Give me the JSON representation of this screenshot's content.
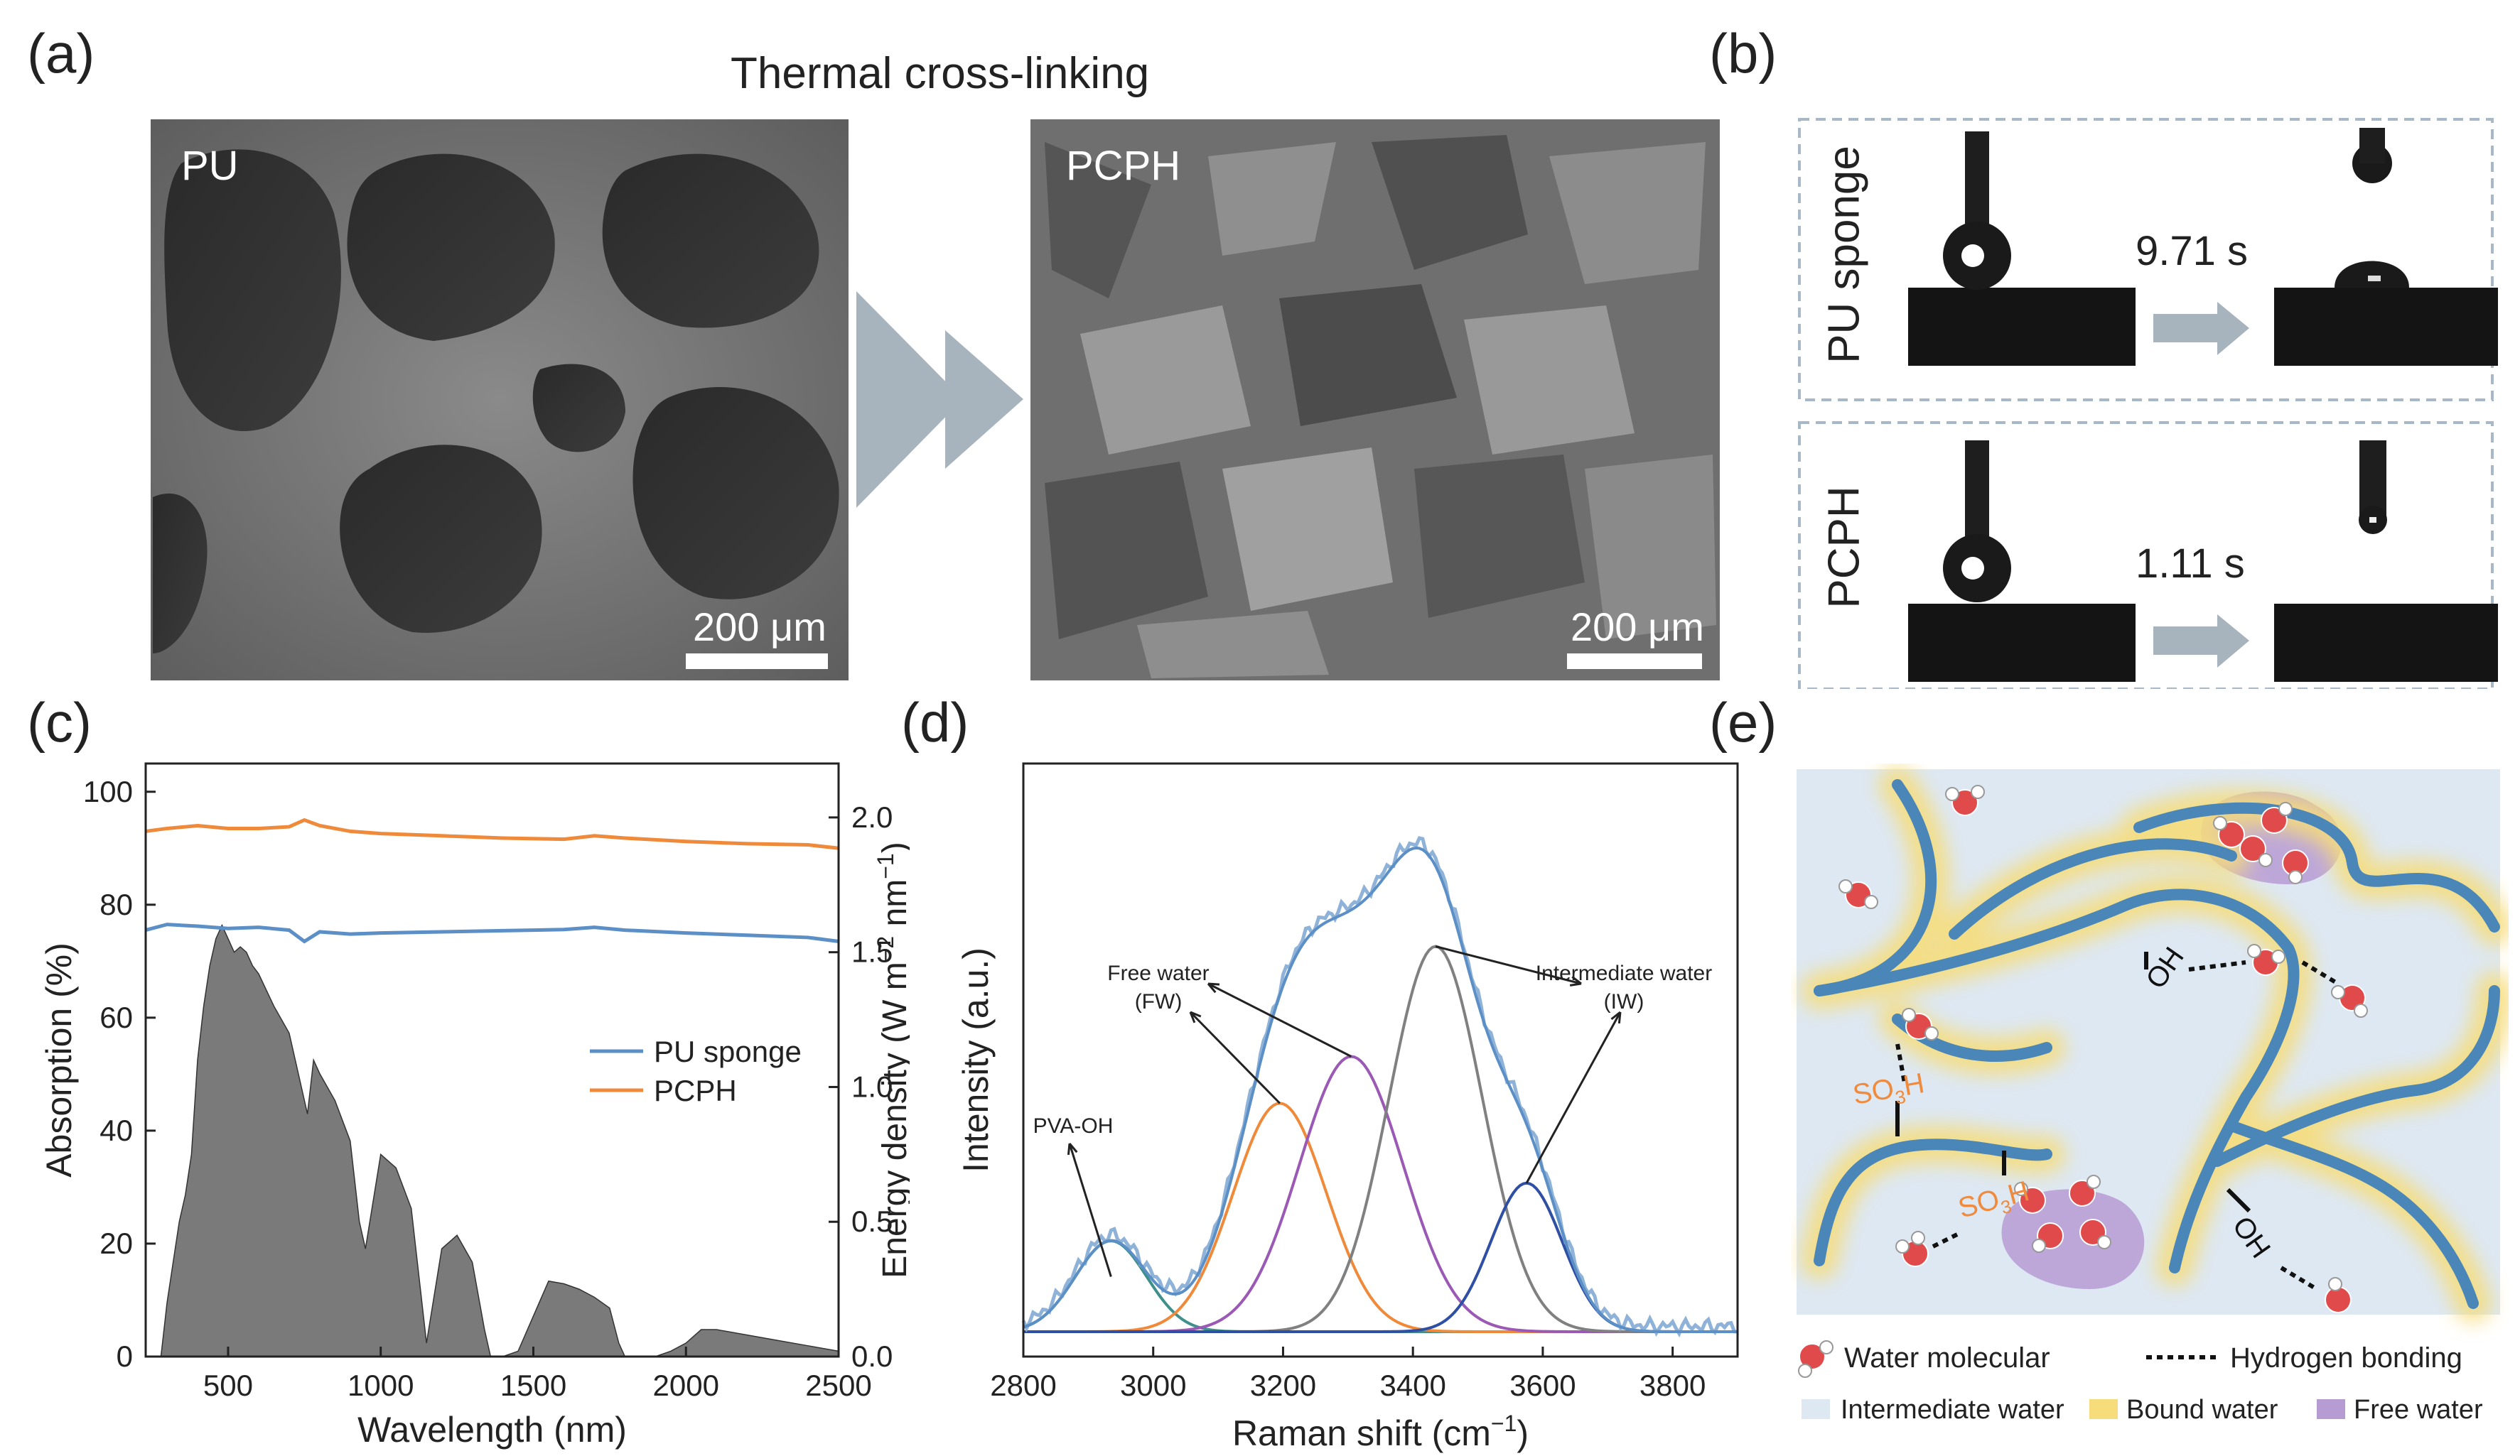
{
  "panel_labels": {
    "a": "(a)",
    "b": "(b)",
    "c": "(c)",
    "d": "(d)",
    "e": "(e)"
  },
  "panel_a": {
    "title": "Thermal cross-linking",
    "left_label": "PU",
    "right_label": "PCPH",
    "scale_left": "200 μm",
    "scale_right": "200 μm"
  },
  "panel_b": {
    "row1_label": "PU sponge",
    "row1_time": "9.71 s",
    "row2_label": "PCPH",
    "row2_time": "1.11 s"
  },
  "panel_e": {
    "oh1": "OH",
    "oh2": "OH",
    "so3h1_main": "SO",
    "so3h1_sub": "3",
    "so3h1_end": "H",
    "so3h2_main": "SO",
    "so3h2_sub": "3",
    "so3h2_end": "H",
    "legend_water": "Water molecular",
    "legend_hbond": "Hydrogen bonding",
    "legend_iw": "Intermediate water",
    "legend_bw": "Bound  water",
    "legend_fw": "Free water",
    "colors": {
      "background": "#dde8f3",
      "chain": "#4a86b8",
      "bound": "#f6dc7a",
      "free": "#a98bc9",
      "oxygen": "#e04a4a",
      "sulfonic": "#f08a3c"
    }
  },
  "chart_data": [
    {
      "id": "c",
      "type": "line",
      "xlabel": "Wavelength (nm)",
      "ylabel": "Absorption (%)",
      "ylabel_right_main": "Energy density (W m",
      "ylabel_right_sup1": "−2",
      "ylabel_right_mid": " nm",
      "ylabel_right_sup2": "−1",
      "ylabel_right_end": ")",
      "xlim": [
        230,
        2500
      ],
      "ylim": [
        0,
        105
      ],
      "ylim_right": [
        0,
        2.2
      ],
      "xticks": [
        500,
        1000,
        1500,
        2000,
        2500
      ],
      "xtick_labels": [
        "500",
        "1000",
        "1500",
        "2000",
        "2500"
      ],
      "yticks": [
        0,
        20,
        40,
        60,
        80,
        100
      ],
      "ytick_labels": [
        "0",
        "20",
        "40",
        "60",
        "80",
        "100"
      ],
      "yticks_right": [
        0.0,
        0.5,
        1.0,
        1.5,
        2.0
      ],
      "ytick_right_labels": [
        "0.0",
        "0.5",
        "1.0",
        "1.5",
        "2.0"
      ],
      "legend_position": "center-right",
      "series": [
        {
          "name": "PU sponge",
          "color": "#5b8fc6",
          "x": [
            230,
            300,
            400,
            500,
            600,
            700,
            750,
            800,
            900,
            1000,
            1200,
            1400,
            1600,
            1700,
            1800,
            2000,
            2200,
            2400,
            2500
          ],
          "y": [
            75.5,
            76.5,
            76.2,
            75.8,
            76,
            75.5,
            73.5,
            75.2,
            74.8,
            75,
            75.2,
            75.4,
            75.6,
            76,
            75.5,
            75,
            74.6,
            74.2,
            73.5
          ]
        },
        {
          "name": "PCPH",
          "color": "#ef8a3b",
          "x": [
            230,
            300,
            400,
            500,
            600,
            700,
            750,
            800,
            900,
            1000,
            1200,
            1400,
            1600,
            1700,
            1800,
            2000,
            2200,
            2400,
            2500
          ],
          "y": [
            93,
            93.5,
            94,
            93.5,
            93.5,
            93.8,
            95,
            94,
            93,
            92.6,
            92.2,
            91.8,
            91.6,
            92.2,
            91.8,
            91.2,
            90.8,
            90.6,
            90
          ]
        }
      ],
      "solar_spectrum": {
        "label": "",
        "color": "#7a7a7a",
        "x": [
          280,
          300,
          320,
          340,
          360,
          380,
          400,
          420,
          440,
          460,
          480,
          500,
          520,
          540,
          560,
          580,
          600,
          650,
          700,
          760,
          780,
          800,
          850,
          900,
          930,
          950,
          1000,
          1050,
          1100,
          1130,
          1150,
          1200,
          1250,
          1300,
          1340,
          1360,
          1400,
          1450,
          1500,
          1550,
          1600,
          1650,
          1700,
          1750,
          1780,
          1800,
          1900,
          1950,
          2000,
          2050,
          2100,
          2200,
          2300,
          2400,
          2500
        ],
        "y": [
          0,
          0.2,
          0.35,
          0.5,
          0.6,
          0.75,
          1.1,
          1.3,
          1.45,
          1.55,
          1.6,
          1.55,
          1.5,
          1.52,
          1.5,
          1.45,
          1.42,
          1.3,
          1.2,
          0.9,
          1.1,
          1.05,
          0.95,
          0.8,
          0.5,
          0.4,
          0.75,
          0.7,
          0.55,
          0.25,
          0.05,
          0.4,
          0.45,
          0.35,
          0.1,
          0.0,
          0.0,
          0.02,
          0.15,
          0.28,
          0.27,
          0.25,
          0.22,
          0.18,
          0.05,
          0.0,
          0.0,
          0.02,
          0.05,
          0.1,
          0.1,
          0.08,
          0.06,
          0.04,
          0.02
        ]
      }
    },
    {
      "id": "d",
      "type": "line",
      "xlabel": "Raman shift (cm",
      "xlabel_sup": "−1",
      "xlabel_end": ")",
      "ylabel": "Intensity (a.u.)",
      "xlim": [
        2800,
        3900
      ],
      "ylim": [
        0,
        1.0
      ],
      "xticks": [
        2800,
        3000,
        3200,
        3400,
        3600,
        3800
      ],
      "xtick_labels": [
        "2800",
        "3000",
        "3200",
        "3400",
        "3600",
        "3800"
      ],
      "annotations": [
        {
          "text": "PVA-OH"
        },
        {
          "text": "Free water"
        },
        {
          "text": "(FW)"
        },
        {
          "text": "Intermediate water"
        },
        {
          "text": "(IW)"
        }
      ],
      "peaks": [
        {
          "name": "PVA-OH",
          "center": 2935,
          "amp": 0.165,
          "width": 55,
          "color": "#3f8f8a"
        },
        {
          "name": "FW1",
          "center": 3195,
          "amp": 0.415,
          "width": 72,
          "color": "#ef8a3b"
        },
        {
          "name": "FW2",
          "center": 3305,
          "amp": 0.5,
          "width": 80,
          "color": "#9b59b6"
        },
        {
          "name": "IW1",
          "center": 3435,
          "amp": 0.7,
          "width": 72,
          "color": "#808080"
        },
        {
          "name": "IW2",
          "center": 3575,
          "amp": 0.27,
          "width": 55,
          "color": "#2e4fa3"
        }
      ],
      "measured_color": "#8fb3d8",
      "fit_color": "#5b8fc6"
    }
  ]
}
